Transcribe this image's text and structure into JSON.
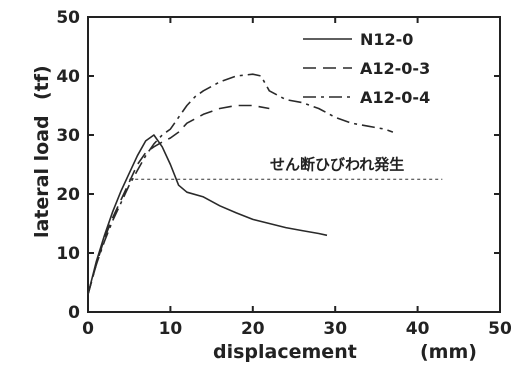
{
  "chart_data": {
    "type": "line",
    "xlabel": "displacement",
    "xunit": "(mm)",
    "ylabel": "lateral load",
    "yunit": "(tf)",
    "xlim": [
      0,
      50
    ],
    "ylim": [
      0,
      50
    ],
    "xticks": [
      0,
      10,
      20,
      30,
      40,
      50
    ],
    "yticks": [
      0,
      10,
      20,
      30,
      40,
      50
    ],
    "grid": false,
    "legend_position": "top-right",
    "series": [
      {
        "name": "N12-0",
        "style": "solid",
        "x": [
          0,
          1,
          2,
          3,
          4,
          5,
          6,
          7,
          8,
          9,
          10,
          11,
          12,
          14,
          16,
          18,
          20,
          22,
          24,
          26,
          28,
          29
        ],
        "y": [
          3,
          8.5,
          13,
          17,
          20.5,
          23.5,
          26.5,
          29,
          30,
          28,
          25,
          21.5,
          20.3,
          19.5,
          18,
          16.8,
          15.7,
          15,
          14.3,
          13.8,
          13.3,
          13
        ]
      },
      {
        "name": "A12-0-3",
        "style": "dashed",
        "x": [
          0,
          1,
          2,
          3,
          4,
          5,
          6,
          7,
          8,
          9,
          10,
          11,
          12,
          14,
          16,
          18,
          20,
          22
        ],
        "y": [
          3,
          8,
          12.5,
          16,
          19,
          22,
          25,
          27,
          28,
          28.8,
          29.5,
          30.5,
          32,
          33.5,
          34.5,
          35,
          35,
          34.5
        ]
      },
      {
        "name": "A12-0-4",
        "style": "dash-dot",
        "x": [
          0,
          1,
          2,
          3,
          4,
          5,
          6,
          7,
          8,
          9,
          10,
          11,
          12,
          13,
          14,
          16,
          18,
          20,
          21,
          22,
          24,
          26,
          28,
          30,
          32,
          34,
          36,
          37
        ],
        "y": [
          3,
          8,
          12,
          15.5,
          18.5,
          21.5,
          24,
          26.5,
          28.5,
          30,
          31,
          33,
          35,
          36.5,
          37.5,
          39,
          40,
          40.3,
          40,
          37.5,
          36,
          35.5,
          34.5,
          33,
          32,
          31.5,
          31,
          30.5
        ]
      }
    ],
    "annotations": [
      {
        "text": "せん断ひびわれ発生",
        "line_y": 22.5,
        "x_from": 5,
        "x_to": 43
      }
    ]
  }
}
